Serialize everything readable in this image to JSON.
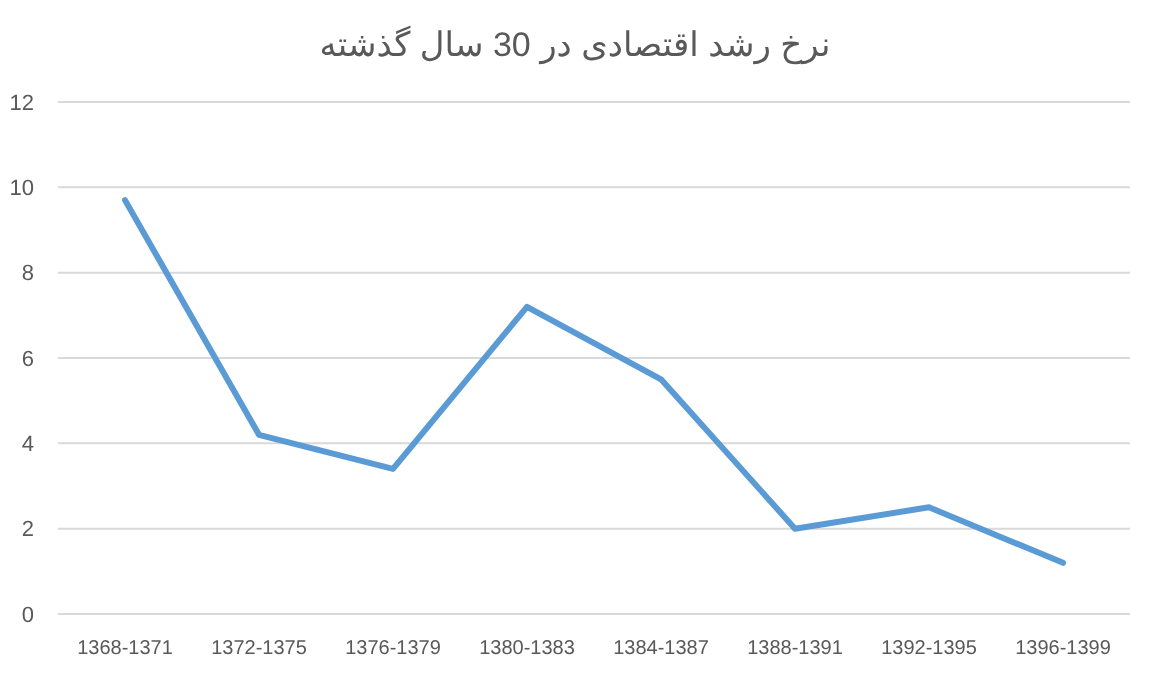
{
  "chart_data": {
    "type": "line",
    "title": "نرخ رشد اقتصادی در 30 سال گذشته",
    "categories": [
      "1368-1371",
      "1372-1375",
      "1376-1379",
      "1380-1383",
      "1384-1387",
      "1388-1391",
      "1392-1395",
      "1396-1399"
    ],
    "series": [
      {
        "color": "#5b9bd5",
        "values": [
          9.7,
          4.2,
          3.4,
          7.2,
          5.5,
          2.0,
          2.5,
          1.2
        ]
      }
    ],
    "ylim": [
      0,
      12
    ],
    "yticks": [
      0,
      2,
      4,
      6,
      8,
      10,
      12
    ],
    "grid": "y",
    "marker": "none",
    "line_style": "solid"
  }
}
